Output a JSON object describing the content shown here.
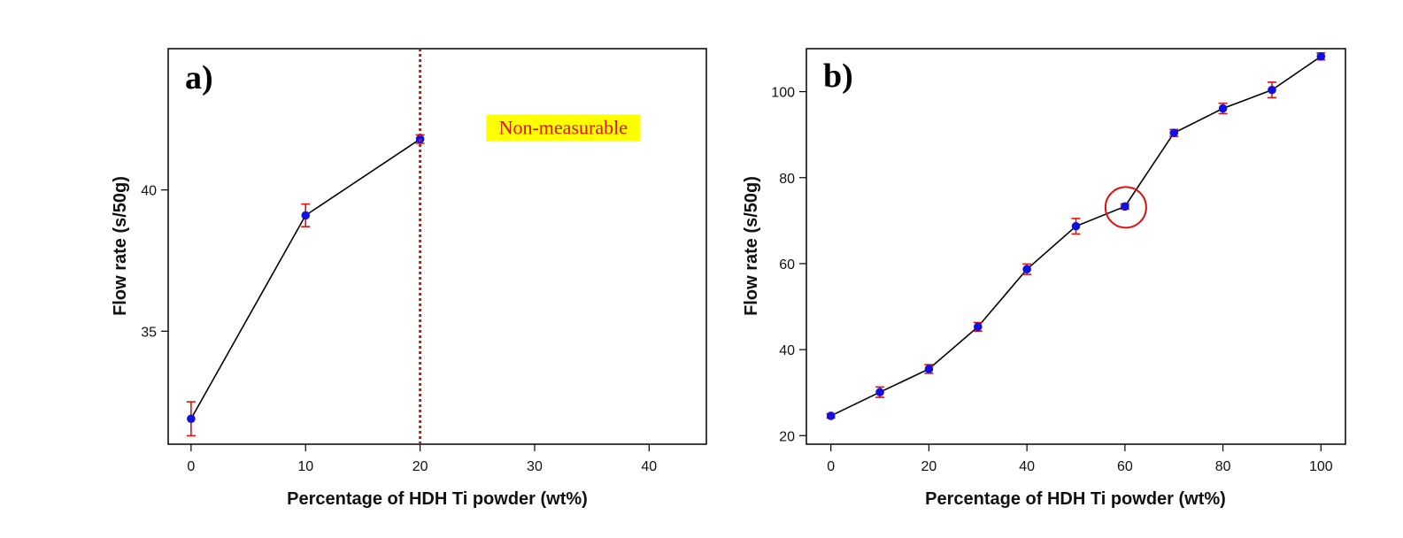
{
  "colors": {
    "line": "#000000",
    "marker": "#1010e0",
    "error_bar": "#e01010",
    "threshold": "#e01010",
    "note_bg": "#ffff00",
    "circle": "#e01010"
  },
  "chart_data": [
    {
      "type": "line",
      "panel_label": "a)",
      "xlabel": "Percentage of HDH Ti powder (wt%)",
      "ylabel": "Flow rate (s/50g)",
      "xlim": [
        -2,
        45
      ],
      "ylim": [
        31,
        45
      ],
      "x_ticks": [
        0,
        10,
        20,
        30,
        40
      ],
      "y_ticks": [
        35,
        40
      ],
      "series": [
        {
          "name": "Flow rate",
          "x": [
            0,
            10,
            20
          ],
          "y": [
            31.9,
            39.1,
            41.8
          ],
          "err": [
            0.6,
            0.4,
            0.15
          ]
        }
      ],
      "threshold_x": 20,
      "annotation": {
        "text": "Non-measurable",
        "x": 32.5,
        "y": 42.2
      }
    },
    {
      "type": "line",
      "panel_label": "b)",
      "xlabel": "Percentage of HDH Ti powder (wt%)",
      "ylabel": "Flow rate (s/50g)",
      "xlim": [
        -5,
        105
      ],
      "ylim": [
        18,
        110
      ],
      "x_ticks": [
        0,
        20,
        40,
        60,
        80,
        100
      ],
      "y_ticks": [
        20,
        40,
        60,
        80,
        100
      ],
      "series": [
        {
          "name": "Flow rate",
          "x": [
            0,
            10,
            20,
            30,
            40,
            50,
            60,
            70,
            80,
            90,
            100
          ],
          "y": [
            24.6,
            30.1,
            35.5,
            45.3,
            58.7,
            68.7,
            73.3,
            90.4,
            96.1,
            100.4,
            108.2
          ],
          "err": [
            0.5,
            1.2,
            1.0,
            1.0,
            1.2,
            1.8,
            0.6,
            0.8,
            1.2,
            1.8,
            0.8
          ]
        }
      ],
      "highlight_x": 60
    }
  ]
}
